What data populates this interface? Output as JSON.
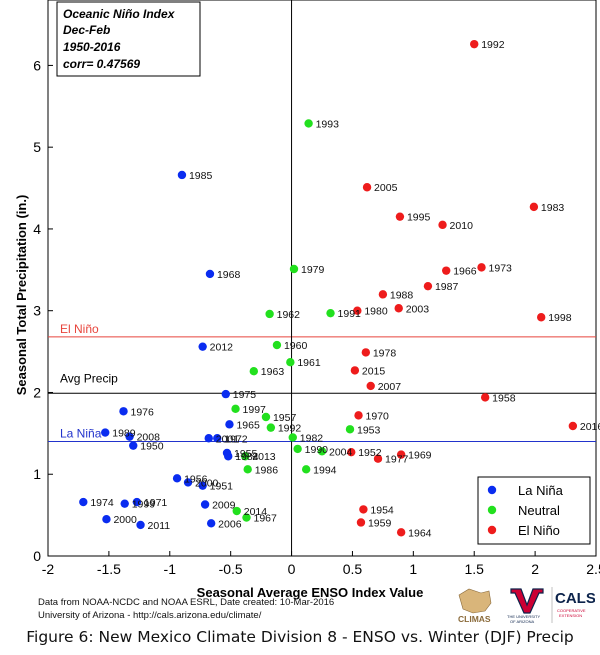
{
  "chart_data": {
    "type": "scatter",
    "title_lines": [
      "Oceanic Niño Index",
      "Dec-Feb",
      "1950-2016",
      "corr= 0.47569"
    ],
    "xlabel": "Seasonal Average ENSO Index Value",
    "ylabel": "Seasonal Total Precipitation (in.)",
    "xlim": [
      -2,
      2.5
    ],
    "ylim": [
      0,
      6.8
    ],
    "xticks": [
      -2,
      -1.5,
      -1,
      -0.5,
      0,
      0.5,
      1,
      1.5,
      2,
      2.5
    ],
    "xtick_labels": [
      "-2",
      "-1.5",
      "-1",
      "-0.5",
      "0",
      "0.5",
      "1",
      "1.5",
      "2",
      "2.5"
    ],
    "yticks": [
      0,
      1,
      2,
      3,
      4,
      5,
      6
    ],
    "ytick_labels": [
      "0",
      "1",
      "2",
      "3",
      "4",
      "5",
      "6"
    ],
    "grid": false,
    "legend_position": "bottom-right",
    "reference_lines": [
      {
        "label": "El Niño",
        "y": 2.68,
        "color": "#e8453c"
      },
      {
        "label": "Avg Precip",
        "y": 1.99,
        "color": "#000000"
      },
      {
        "label": "La Niña",
        "y": 1.4,
        "color": "#2233cc"
      }
    ],
    "series": [
      {
        "name": "La Niña",
        "color": "#0a2cf0",
        "points": [
          {
            "year": "1985",
            "x": -0.9,
            "y": 4.66
          },
          {
            "year": "1968",
            "x": -0.67,
            "y": 3.45
          },
          {
            "year": "2012",
            "x": -0.73,
            "y": 2.56
          },
          {
            "year": "1975",
            "x": -0.54,
            "y": 1.98
          },
          {
            "year": "1976",
            "x": -1.38,
            "y": 1.77
          },
          {
            "year": "1965",
            "x": -0.51,
            "y": 1.61
          },
          {
            "year": "1989",
            "x": -1.53,
            "y": 1.51
          },
          {
            "year": "2008",
            "x": -1.33,
            "y": 1.46
          },
          {
            "year": "1950",
            "x": -1.3,
            "y": 1.35
          },
          {
            "year": "2001",
            "x": -0.68,
            "y": 1.44
          },
          {
            "year": "1972",
            "x": -0.61,
            "y": 1.44
          },
          {
            "year": "1955",
            "x": -0.53,
            "y": 1.26
          },
          {
            "year": "1984",
            "x": -0.52,
            "y": 1.22
          },
          {
            "year": "1956",
            "x": -0.94,
            "y": 0.95
          },
          {
            "year": "2000",
            "x": -0.85,
            "y": 0.9
          },
          {
            "year": "1951",
            "x": -0.73,
            "y": 0.86
          },
          {
            "year": "1974",
            "x": -1.71,
            "y": 0.66
          },
          {
            "year": "1999",
            "x": -1.37,
            "y": 0.64
          },
          {
            "year": "1971",
            "x": -1.27,
            "y": 0.66
          },
          {
            "year": "2009",
            "x": -0.71,
            "y": 0.63
          },
          {
            "year": "2000",
            "x": -1.52,
            "y": 0.45
          },
          {
            "year": "2011",
            "x": -1.24,
            "y": 0.38
          },
          {
            "year": "2006",
            "x": -0.66,
            "y": 0.4
          }
        ]
      },
      {
        "name": "Neutral",
        "color": "#22e01e",
        "points": [
          {
            "year": "1993",
            "x": 0.14,
            "y": 5.29
          },
          {
            "year": "1979",
            "x": 0.02,
            "y": 3.51
          },
          {
            "year": "1962",
            "x": -0.18,
            "y": 2.96
          },
          {
            "year": "1991",
            "x": 0.32,
            "y": 2.97
          },
          {
            "year": "1960",
            "x": -0.12,
            "y": 2.58
          },
          {
            "year": "1961",
            "x": -0.01,
            "y": 2.37
          },
          {
            "year": "1963",
            "x": -0.31,
            "y": 2.26
          },
          {
            "year": "1997",
            "x": -0.46,
            "y": 1.8
          },
          {
            "year": "1957",
            "x": -0.21,
            "y": 1.7
          },
          {
            "year": "1992",
            "x": -0.17,
            "y": 1.57
          },
          {
            "year": "1982",
            "x": 0.01,
            "y": 1.45
          },
          {
            "year": "1953",
            "x": 0.48,
            "y": 1.55
          },
          {
            "year": "1990",
            "x": 0.05,
            "y": 1.31
          },
          {
            "year": "2004",
            "x": 0.25,
            "y": 1.28
          },
          {
            "year": "2013",
            "x": -0.38,
            "y": 1.22
          },
          {
            "year": "1986",
            "x": -0.36,
            "y": 1.06
          },
          {
            "year": "1994",
            "x": 0.12,
            "y": 1.06
          },
          {
            "year": "2014",
            "x": -0.45,
            "y": 0.55
          },
          {
            "year": "1967",
            "x": -0.37,
            "y": 0.47
          }
        ]
      },
      {
        "name": "El Niño",
        "color": "#ee1c1c",
        "points": [
          {
            "year": "1992",
            "x": 1.5,
            "y": 6.26
          },
          {
            "year": "1983",
            "x": 1.99,
            "y": 4.27
          },
          {
            "year": "2005",
            "x": 0.62,
            "y": 4.51
          },
          {
            "year": "1995",
            "x": 0.89,
            "y": 4.15
          },
          {
            "year": "2010",
            "x": 1.24,
            "y": 4.05
          },
          {
            "year": "1966",
            "x": 1.27,
            "y": 3.49
          },
          {
            "year": "1973",
            "x": 1.56,
            "y": 3.53
          },
          {
            "year": "1987",
            "x": 1.12,
            "y": 3.3
          },
          {
            "year": "1988",
            "x": 0.75,
            "y": 3.2
          },
          {
            "year": "1980",
            "x": 0.54,
            "y": 3.0
          },
          {
            "year": "2003",
            "x": 0.88,
            "y": 3.03
          },
          {
            "year": "1998",
            "x": 2.05,
            "y": 2.92
          },
          {
            "year": "1978",
            "x": 0.61,
            "y": 2.49
          },
          {
            "year": "2015",
            "x": 0.52,
            "y": 2.27
          },
          {
            "year": "2007",
            "x": 0.65,
            "y": 2.08
          },
          {
            "year": "1958",
            "x": 1.59,
            "y": 1.94
          },
          {
            "year": "1970",
            "x": 0.55,
            "y": 1.72
          },
          {
            "year": "2016",
            "x": 2.31,
            "y": 1.59
          },
          {
            "year": "1952",
            "x": 0.49,
            "y": 1.27
          },
          {
            "year": "1977",
            "x": 0.71,
            "y": 1.19
          },
          {
            "year": "1969",
            "x": 0.9,
            "y": 1.24
          },
          {
            "year": "1954",
            "x": 0.59,
            "y": 0.57
          },
          {
            "year": "1959",
            "x": 0.57,
            "y": 0.41
          },
          {
            "year": "1964",
            "x": 0.9,
            "y": 0.29
          }
        ]
      }
    ]
  },
  "credits": {
    "line1": "Data from NOAA-NCDC and NOAA ESRL, Date created:  10-Mar-2016",
    "line2": "University of Arizona - http://cals.arizona.edu/climate/"
  },
  "logos": {
    "climas": "CLIMAS",
    "ua_line1": "THE UNIVERSITY",
    "ua_line2": "OF ARIZONA",
    "cals": "CALS",
    "cals_sub1": "COOPERATIVE",
    "cals_sub2": "EXTENSION"
  },
  "caption": "Figure 6: New Mexico Climate Division 8 - ENSO vs. Winter (DJF) Precip"
}
